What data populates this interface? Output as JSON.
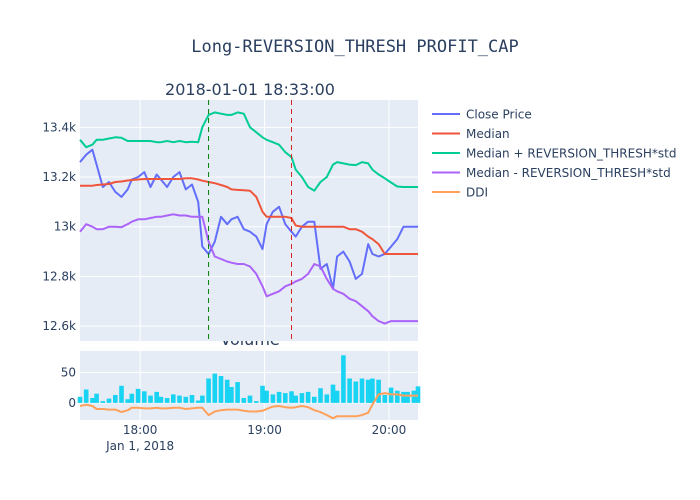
{
  "title": "Long-REVERSION_THRESH PROFIT_CAP",
  "subplot_titles": [
    "2018-01-01 18:33:00",
    "Volume"
  ],
  "colors": {
    "plot_bg": "#e5ecf6",
    "grid": "#ffffff",
    "close": "#636efa",
    "median": "#ef553b",
    "upper": "#00cc96",
    "lower": "#ab63fa",
    "ddi": "#ffa15a",
    "volume": "#19d3f3",
    "vline_entry": "green",
    "vline_exit": "#d62728"
  },
  "chart_data": [
    {
      "type": "line",
      "title": "2018-01-01 18:33:00",
      "x_axis": {
        "type": "time",
        "start": "2018-01-01 17:31",
        "end": "2018-01-01 20:14"
      },
      "ylim": [
        12540,
        13510
      ],
      "y_ticks": [
        12600,
        12800,
        13000,
        13200,
        13400
      ],
      "y_tick_labels": [
        "12.6k",
        "12.8k",
        "13k",
        "13.2k",
        "13.4k"
      ],
      "grid": true,
      "legend_placement": "right",
      "minutes_sample": [
        0,
        3,
        6,
        8,
        11,
        14,
        17,
        20,
        23,
        25,
        28,
        31,
        34,
        37,
        39,
        42,
        45,
        48,
        51,
        54,
        57,
        59,
        62,
        65,
        68,
        71,
        73,
        76,
        79,
        82,
        85,
        88,
        90,
        93,
        96,
        99,
        102,
        104,
        107,
        110,
        113,
        116,
        119,
        122,
        124,
        127,
        130,
        133,
        136,
        139,
        141,
        144,
        147,
        150,
        153,
        156,
        158,
        161,
        163
      ],
      "series": [
        {
          "name": "Close Price",
          "color_key": "close",
          "values": [
            13260,
            13290,
            13310,
            13250,
            13160,
            13180,
            13140,
            13120,
            13150,
            13190,
            13200,
            13220,
            13160,
            13210,
            13190,
            13160,
            13200,
            13220,
            13150,
            13170,
            13100,
            12920,
            12890,
            12940,
            13040,
            13010,
            13030,
            13040,
            12990,
            12980,
            12960,
            12910,
            13010,
            13060,
            13080,
            13010,
            12980,
            12960,
            13000,
            13020,
            13020,
            12830,
            12850,
            12750,
            12880,
            12900,
            12860,
            12790,
            12810,
            12930,
            12890,
            12880,
            12890,
            12920,
            12950,
            13000,
            13000,
            13000,
            13000
          ]
        },
        {
          "name": "Median",
          "color_key": "median",
          "values": [
            13165,
            13165,
            13165,
            13168,
            13170,
            13172,
            13180,
            13182,
            13186,
            13188,
            13190,
            13192,
            13192,
            13192,
            13192,
            13192,
            13192,
            13192,
            13195,
            13195,
            13190,
            13185,
            13180,
            13175,
            13168,
            13160,
            13150,
            13148,
            13147,
            13145,
            13120,
            13060,
            13040,
            13040,
            13040,
            13040,
            13035,
            13005,
            13000,
            13000,
            13000,
            13000,
            13000,
            13000,
            13000,
            13000,
            12990,
            12990,
            12980,
            12960,
            12950,
            12930,
            12890,
            12890,
            12890,
            12890,
            12890,
            12890,
            12890
          ]
        },
        {
          "name": "Median + REVERSION_THRESH*std",
          "color_key": "upper",
          "values": [
            13350,
            13320,
            13330,
            13350,
            13350,
            13355,
            13360,
            13358,
            13345,
            13345,
            13345,
            13345,
            13345,
            13340,
            13340,
            13345,
            13340,
            13345,
            13340,
            13342,
            13340,
            13400,
            13450,
            13460,
            13455,
            13450,
            13450,
            13460,
            13455,
            13400,
            13380,
            13360,
            13350,
            13340,
            13330,
            13300,
            13280,
            13230,
            13200,
            13160,
            13145,
            13180,
            13200,
            13250,
            13260,
            13255,
            13250,
            13248,
            13260,
            13255,
            13230,
            13210,
            13195,
            13178,
            13162,
            13160,
            13160,
            13160,
            13160
          ]
        },
        {
          "name": "Median - REVERSION_THRESH*std",
          "color_key": "lower",
          "values": [
            12980,
            13010,
            13000,
            12990,
            12990,
            13000,
            13000,
            12998,
            13010,
            13020,
            13030,
            13030,
            13035,
            13040,
            13040,
            13045,
            13050,
            13045,
            13045,
            13040,
            13040,
            13040,
            12940,
            12880,
            12870,
            12860,
            12855,
            12850,
            12850,
            12840,
            12810,
            12760,
            12720,
            12730,
            12740,
            12760,
            12770,
            12780,
            12790,
            12810,
            12850,
            12840,
            12790,
            12750,
            12740,
            12730,
            12710,
            12700,
            12680,
            12660,
            12640,
            12620,
            12610,
            12620,
            12620,
            12620,
            12620,
            12620,
            12620
          ]
        }
      ],
      "vertical_lines": [
        {
          "at_minute": 62,
          "color_key": "vline_entry",
          "style": "dash"
        },
        {
          "at_minute": 102,
          "color_key": "vline_exit",
          "style": "dash"
        }
      ]
    },
    {
      "type": "bar",
      "title": "Volume",
      "x_axis": {
        "type": "time",
        "start": "2018-01-01 17:31",
        "end": "2018-01-01 20:14"
      },
      "x_ticks": [
        {
          "label": "18:00",
          "minute": 29
        },
        {
          "label": "19:00",
          "minute": 89
        },
        {
          "label": "20:00",
          "minute": 149
        }
      ],
      "x_tick_sublabel": "Jan 1, 2018",
      "ylim": [
        -28,
        85
      ],
      "y_ticks": [
        0,
        50
      ],
      "y_tick_labels": [
        "0",
        "50"
      ],
      "grid": true,
      "series": [
        {
          "name": "Volume",
          "color_key": "volume",
          "type": "bar",
          "minutes": [
            0,
            3,
            6,
            8,
            11,
            14,
            17,
            20,
            23,
            25,
            28,
            31,
            34,
            37,
            39,
            42,
            45,
            48,
            51,
            54,
            57,
            59,
            62,
            65,
            68,
            71,
            73,
            76,
            79,
            82,
            85,
            88,
            90,
            93,
            96,
            99,
            102,
            104,
            107,
            110,
            113,
            116,
            119,
            122,
            124,
            127,
            130,
            133,
            136,
            139,
            141,
            144,
            147,
            150,
            153,
            156,
            158,
            161,
            163
          ],
          "values": [
            10,
            22,
            8,
            15,
            3,
            7,
            13,
            28,
            6,
            15,
            23,
            19,
            12,
            18,
            10,
            8,
            14,
            12,
            10,
            13,
            4,
            12,
            40,
            48,
            44,
            38,
            26,
            34,
            8,
            12,
            3,
            28,
            20,
            14,
            18,
            16,
            19,
            12,
            16,
            18,
            10,
            24,
            14,
            30,
            20,
            78,
            40,
            35,
            40,
            38,
            40,
            38,
            13,
            25,
            20,
            18,
            18,
            20,
            27
          ]
        },
        {
          "name": "DDI",
          "color_key": "ddi",
          "type": "line",
          "minutes": [
            0,
            3,
            6,
            8,
            11,
            14,
            17,
            20,
            23,
            25,
            28,
            31,
            34,
            37,
            39,
            42,
            45,
            48,
            51,
            54,
            57,
            59,
            62,
            65,
            68,
            71,
            73,
            76,
            79,
            82,
            85,
            88,
            90,
            93,
            96,
            99,
            102,
            104,
            107,
            110,
            113,
            116,
            119,
            122,
            124,
            127,
            130,
            133,
            136,
            139,
            141,
            144,
            147,
            150,
            153,
            156,
            158,
            161,
            163
          ],
          "values": [
            -5,
            -3,
            -5,
            -10,
            -10,
            -11,
            -11,
            -15,
            -12,
            -8,
            -8,
            -9,
            -9,
            -8,
            -9,
            -9,
            -8,
            -8,
            -10,
            -9,
            -8,
            -8,
            -20,
            -14,
            -12,
            -11,
            -11,
            -11,
            -13,
            -14,
            -14,
            -13,
            -10,
            -6,
            -5,
            -7,
            -8,
            -7,
            -5,
            -7,
            -12,
            -15,
            -20,
            -25,
            -22,
            -22,
            -22,
            -22,
            -20,
            -16,
            -3,
            14,
            16,
            14,
            14,
            12,
            12,
            12,
            12
          ]
        }
      ]
    }
  ],
  "legend": [
    {
      "label": "Close Price",
      "color_key": "close"
    },
    {
      "label": "Median",
      "color_key": "median"
    },
    {
      "label": "Median + REVERSION_THRESH*std",
      "color_key": "upper"
    },
    {
      "label": "Median - REVERSION_THRESH*std",
      "color_key": "lower"
    },
    {
      "label": "DDI",
      "color_key": "ddi"
    }
  ]
}
